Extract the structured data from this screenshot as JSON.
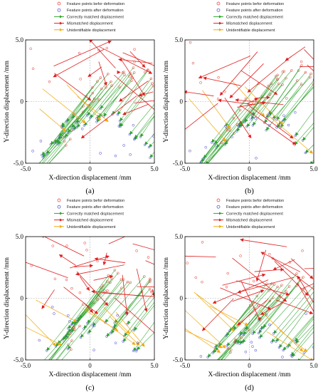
{
  "chart_data": [
    {
      "type": "scatter",
      "panel_label": "(a)",
      "xlabel": "X-direction displacement /mm",
      "ylabel": "Y-direction displacement /mm",
      "xlim": [
        -5.0,
        5.0
      ],
      "ylim": [
        -5.0,
        5.0
      ],
      "x_ticks": [
        "-5.0",
        "0",
        "5.0"
      ],
      "y_ticks": [
        "5.0",
        "0",
        "-5.0"
      ],
      "seed": 11,
      "counts": {
        "correct": 46,
        "mismatched": 18,
        "unidentifiable": 4,
        "noise": 22
      }
    },
    {
      "type": "scatter",
      "panel_label": "(b)",
      "xlabel": "X-direction displacement /mm",
      "ylabel": "Y-direction displacement /mm",
      "xlim": [
        -5.0,
        5.0
      ],
      "ylim": [
        -5.0,
        5.0
      ],
      "x_ticks": [
        "-5.0",
        "0",
        "5.0"
      ],
      "y_ticks": [
        "5.0",
        "0",
        "-5.0"
      ],
      "seed": 23,
      "counts": {
        "correct": 44,
        "mismatched": 20,
        "unidentifiable": 5,
        "noise": 20
      }
    },
    {
      "type": "scatter",
      "panel_label": "(c)",
      "xlabel": "X-direction displacement /mm",
      "ylabel": "Y-direction displacement /mm",
      "xlim": [
        -5.0,
        5.0
      ],
      "ylim": [
        -5.0,
        5.0
      ],
      "x_ticks": [
        "-5.0",
        "0",
        "5.0"
      ],
      "y_ticks": [
        "5.0",
        "0",
        "-5.0"
      ],
      "seed": 37,
      "counts": {
        "correct": 40,
        "mismatched": 24,
        "unidentifiable": 8,
        "noise": 26
      }
    },
    {
      "type": "scatter",
      "panel_label": "(d)",
      "xlabel": "X-direction displacement /mm",
      "ylabel": "Y-direction displacement /mm",
      "xlim": [
        -5.0,
        5.0
      ],
      "ylim": [
        -5.0,
        5.0
      ],
      "x_ticks": [
        "-5.0",
        "0",
        "5.0"
      ],
      "y_ticks": [
        "5.0",
        "0",
        "-5.0"
      ],
      "seed": 53,
      "counts": {
        "correct": 42,
        "mismatched": 26,
        "unidentifiable": 9,
        "noise": 24
      }
    }
  ],
  "legend": [
    {
      "label": "Feature points befor deformation",
      "kind": "circle",
      "color": "#e8322b"
    },
    {
      "label": "Feature points after deformation",
      "kind": "circle",
      "color": "#3b3bd6"
    },
    {
      "label": "Correctly matched displacement",
      "kind": "arrow",
      "color": "#2fa52f"
    },
    {
      "label": "Mismatched displacement",
      "kind": "arrow",
      "color": "#e01f1f"
    },
    {
      "label": "Unidentifiable displacement",
      "kind": "arrow",
      "color": "#f2a90c"
    }
  ],
  "colors": {
    "before": "#e8322b",
    "after": "#3b3bd6",
    "correct": "#2fa52f",
    "mismatched": "#e01f1f",
    "unidentifiable": "#f2a90c",
    "zero_lines": "#b0b0b0"
  }
}
